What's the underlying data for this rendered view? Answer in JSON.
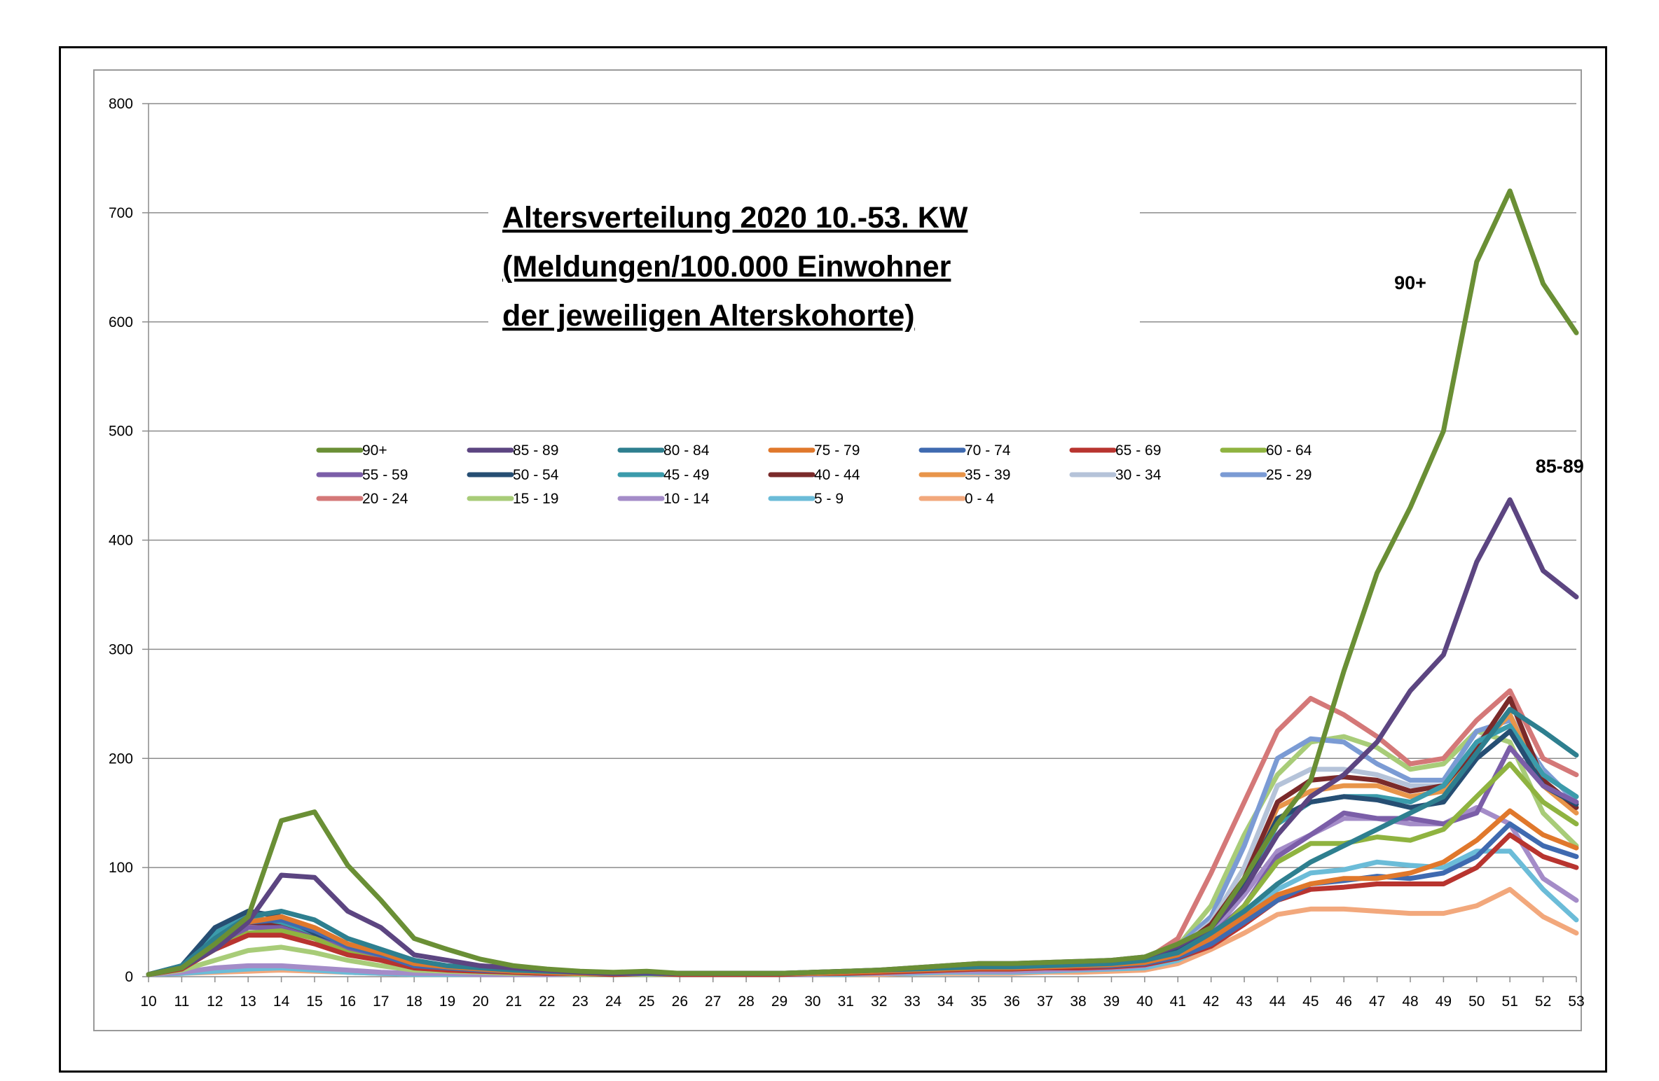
{
  "chart_data": {
    "type": "line",
    "title": "Altersverteilung 2020 10.-53. KW",
    "title_lines": [
      "Altersverteilung 2020 10.-53. KW",
      "(Meldungen/100.000 Einwohner",
      "der jeweiligen Alterskohorte)"
    ],
    "xlabel": "",
    "ylabel": "",
    "ylim": [
      0,
      800
    ],
    "yticks": [
      0,
      100,
      200,
      300,
      400,
      500,
      600,
      700,
      800
    ],
    "grid": true,
    "legend_position": "center-left",
    "x": [
      10,
      11,
      12,
      13,
      14,
      15,
      16,
      17,
      18,
      19,
      20,
      21,
      22,
      23,
      24,
      25,
      26,
      27,
      28,
      29,
      30,
      31,
      32,
      33,
      34,
      35,
      36,
      37,
      38,
      39,
      40,
      41,
      42,
      43,
      44,
      45,
      46,
      47,
      48,
      49,
      50,
      51,
      52,
      53
    ],
    "annotations": [
      {
        "text": "90+",
        "x": 48.0,
        "y": 630
      },
      {
        "text": "85-89",
        "x": 52.5,
        "y": 462
      }
    ],
    "series": [
      {
        "name": "90+",
        "color": "#6a8f35",
        "values": [
          2,
          8,
          30,
          55,
          143,
          151,
          102,
          70,
          35,
          25,
          16,
          10,
          7,
          5,
          4,
          5,
          3,
          3,
          3,
          3,
          4,
          5,
          6,
          8,
          10,
          12,
          12,
          13,
          14,
          15,
          18,
          30,
          45,
          90,
          140,
          180,
          280,
          370,
          430,
          500,
          655,
          720,
          635,
          590
        ]
      },
      {
        "name": "85 - 89",
        "color": "#5c4581",
        "values": [
          2,
          8,
          25,
          50,
          93,
          91,
          60,
          45,
          20,
          15,
          10,
          8,
          6,
          4,
          3,
          4,
          3,
          3,
          3,
          3,
          4,
          5,
          6,
          8,
          10,
          12,
          12,
          13,
          14,
          15,
          18,
          28,
          45,
          80,
          130,
          165,
          185,
          215,
          262,
          295,
          380,
          437,
          372,
          348
        ]
      },
      {
        "name": "80 - 84",
        "color": "#2e7f8f",
        "values": [
          2,
          10,
          35,
          55,
          60,
          52,
          35,
          25,
          15,
          10,
          8,
          6,
          5,
          4,
          3,
          4,
          3,
          3,
          3,
          3,
          4,
          5,
          6,
          7,
          8,
          9,
          9,
          10,
          11,
          12,
          15,
          22,
          40,
          60,
          85,
          105,
          120,
          135,
          150,
          165,
          205,
          245,
          225,
          203
        ]
      },
      {
        "name": "75 - 79",
        "color": "#e0782c",
        "values": [
          2,
          8,
          30,
          50,
          55,
          45,
          30,
          22,
          12,
          9,
          7,
          5,
          4,
          3,
          3,
          4,
          3,
          3,
          3,
          3,
          3,
          4,
          5,
          6,
          7,
          8,
          8,
          9,
          10,
          11,
          13,
          20,
          35,
          55,
          75,
          85,
          90,
          90,
          95,
          105,
          125,
          152,
          130,
          118
        ]
      },
      {
        "name": "70 - 74",
        "color": "#3f6ab0",
        "values": [
          2,
          8,
          30,
          50,
          52,
          42,
          28,
          20,
          10,
          8,
          6,
          5,
          4,
          3,
          3,
          3,
          3,
          3,
          3,
          3,
          3,
          4,
          5,
          6,
          7,
          8,
          8,
          9,
          10,
          10,
          12,
          18,
          30,
          50,
          70,
          85,
          88,
          92,
          90,
          95,
          110,
          140,
          120,
          110
        ]
      },
      {
        "name": "65 - 69",
        "color": "#b8342f",
        "values": [
          2,
          7,
          25,
          38,
          38,
          30,
          20,
          15,
          8,
          6,
          5,
          4,
          3,
          3,
          2,
          3,
          2,
          2,
          2,
          2,
          3,
          3,
          4,
          5,
          6,
          7,
          7,
          8,
          8,
          9,
          11,
          17,
          28,
          48,
          70,
          80,
          82,
          85,
          85,
          85,
          100,
          130,
          110,
          100
        ]
      },
      {
        "name": "60 - 64",
        "color": "#8fb340",
        "values": [
          2,
          7,
          25,
          40,
          42,
          35,
          22,
          15,
          8,
          6,
          5,
          4,
          3,
          3,
          2,
          3,
          2,
          2,
          2,
          2,
          3,
          3,
          4,
          5,
          6,
          7,
          7,
          8,
          9,
          10,
          12,
          20,
          35,
          65,
          105,
          122,
          122,
          128,
          125,
          135,
          165,
          195,
          160,
          140
        ]
      },
      {
        "name": "55 - 59",
        "color": "#7b5ea8",
        "values": [
          2,
          7,
          28,
          45,
          45,
          35,
          25,
          18,
          10,
          7,
          6,
          4,
          3,
          3,
          3,
          3,
          3,
          3,
          3,
          3,
          3,
          4,
          5,
          6,
          7,
          8,
          8,
          9,
          10,
          11,
          13,
          22,
          38,
          65,
          110,
          130,
          150,
          145,
          145,
          140,
          150,
          210,
          175,
          160
        ]
      },
      {
        "name": "50 - 54",
        "color": "#264e73",
        "values": [
          2,
          10,
          45,
          60,
          55,
          40,
          28,
          20,
          12,
          9,
          7,
          5,
          4,
          3,
          3,
          3,
          3,
          3,
          3,
          3,
          3,
          4,
          5,
          6,
          7,
          8,
          8,
          9,
          10,
          11,
          14,
          25,
          45,
          85,
          145,
          160,
          165,
          162,
          155,
          160,
          200,
          225,
          175,
          158
        ]
      },
      {
        "name": "45 - 49",
        "color": "#3b9bab",
        "values": [
          2,
          10,
          40,
          55,
          50,
          40,
          28,
          20,
          12,
          9,
          7,
          5,
          4,
          3,
          3,
          3,
          3,
          3,
          3,
          3,
          3,
          4,
          5,
          6,
          7,
          8,
          8,
          9,
          10,
          11,
          14,
          25,
          45,
          80,
          140,
          160,
          165,
          165,
          160,
          175,
          215,
          230,
          185,
          165
        ]
      },
      {
        "name": "40 - 44",
        "color": "#7a2a2a",
        "values": [
          2,
          8,
          35,
          50,
          48,
          38,
          26,
          18,
          11,
          8,
          6,
          5,
          4,
          3,
          3,
          3,
          3,
          3,
          3,
          3,
          3,
          4,
          5,
          6,
          7,
          8,
          8,
          9,
          10,
          11,
          14,
          25,
          48,
          90,
          160,
          180,
          183,
          180,
          170,
          175,
          210,
          255,
          180,
          155
        ]
      },
      {
        "name": "35 - 39",
        "color": "#e8954a",
        "values": [
          2,
          8,
          35,
          50,
          48,
          38,
          26,
          18,
          11,
          8,
          6,
          5,
          4,
          3,
          3,
          3,
          3,
          3,
          3,
          3,
          3,
          4,
          5,
          6,
          7,
          8,
          8,
          9,
          10,
          11,
          14,
          25,
          48,
          90,
          155,
          170,
          175,
          175,
          165,
          170,
          210,
          240,
          175,
          150
        ]
      },
      {
        "name": "30 - 34",
        "color": "#b5c3d9",
        "values": [
          2,
          8,
          35,
          50,
          48,
          38,
          26,
          18,
          11,
          8,
          6,
          5,
          4,
          3,
          3,
          3,
          3,
          3,
          3,
          3,
          3,
          4,
          5,
          6,
          7,
          8,
          8,
          9,
          10,
          11,
          14,
          25,
          50,
          100,
          175,
          190,
          190,
          185,
          175,
          175,
          215,
          240,
          185,
          165
        ]
      },
      {
        "name": "25 - 29",
        "color": "#7b9bd4",
        "values": [
          2,
          8,
          35,
          50,
          48,
          40,
          27,
          19,
          11,
          8,
          6,
          5,
          4,
          3,
          3,
          3,
          3,
          3,
          3,
          3,
          3,
          4,
          5,
          6,
          7,
          8,
          8,
          9,
          10,
          11,
          15,
          28,
          55,
          120,
          200,
          218,
          215,
          195,
          180,
          180,
          225,
          235,
          190,
          160
        ]
      },
      {
        "name": "20 - 24",
        "color": "#d47878",
        "values": [
          2,
          8,
          35,
          48,
          48,
          40,
          27,
          19,
          11,
          8,
          6,
          5,
          4,
          3,
          3,
          3,
          3,
          3,
          3,
          3,
          3,
          4,
          5,
          6,
          7,
          8,
          8,
          9,
          10,
          11,
          15,
          35,
          95,
          160,
          225,
          255,
          240,
          220,
          195,
          200,
          235,
          262,
          200,
          185
        ]
      },
      {
        "name": "15 - 19",
        "color": "#a8cc78",
        "values": [
          2,
          6,
          15,
          24,
          27,
          22,
          15,
          10,
          6,
          5,
          4,
          3,
          3,
          2,
          2,
          2,
          2,
          2,
          2,
          2,
          3,
          3,
          4,
          5,
          6,
          7,
          7,
          8,
          9,
          10,
          13,
          28,
          65,
          130,
          185,
          215,
          220,
          210,
          190,
          195,
          225,
          215,
          150,
          120
        ]
      },
      {
        "name": "10 - 14",
        "color": "#a48cc8",
        "values": [
          2,
          4,
          8,
          10,
          10,
          8,
          6,
          4,
          3,
          3,
          2,
          2,
          2,
          2,
          2,
          2,
          2,
          2,
          2,
          2,
          2,
          3,
          3,
          4,
          5,
          5,
          5,
          6,
          7,
          8,
          10,
          18,
          40,
          75,
          115,
          130,
          145,
          145,
          140,
          140,
          155,
          140,
          90,
          70
        ]
      },
      {
        "name": "5 - 9",
        "color": "#6bbcd8",
        "values": [
          2,
          3,
          5,
          7,
          8,
          6,
          4,
          3,
          2,
          2,
          2,
          2,
          2,
          2,
          2,
          2,
          2,
          2,
          2,
          2,
          2,
          2,
          3,
          3,
          4,
          4,
          4,
          5,
          6,
          7,
          8,
          15,
          30,
          55,
          80,
          95,
          98,
          105,
          102,
          100,
          115,
          115,
          80,
          52
        ]
      },
      {
        "name": "0 - 4",
        "color": "#f2a87c",
        "values": [
          2,
          3,
          4,
          5,
          6,
          5,
          4,
          3,
          2,
          2,
          2,
          2,
          2,
          2,
          2,
          2,
          2,
          2,
          2,
          2,
          2,
          2,
          2,
          3,
          3,
          3,
          3,
          4,
          4,
          5,
          6,
          12,
          25,
          40,
          57,
          62,
          62,
          60,
          58,
          58,
          65,
          80,
          55,
          40
        ]
      }
    ]
  }
}
